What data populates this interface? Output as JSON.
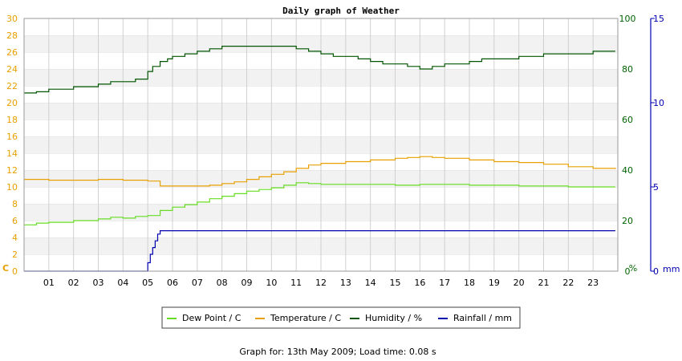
{
  "chart_data": {
    "type": "line",
    "title": "Daily graph of Weather",
    "footer": "Graph for: 13th May 2009; Load time: 0.08 s",
    "x_tick_labels": [
      "01",
      "02",
      "03",
      "04",
      "05",
      "06",
      "07",
      "08",
      "09",
      "10",
      "11",
      "12",
      "13",
      "14",
      "15",
      "16",
      "17",
      "18",
      "19",
      "20",
      "21",
      "22",
      "23"
    ],
    "x_range": [
      0,
      24
    ],
    "grid": true,
    "legend_position": "bottom-center",
    "axes": {
      "left": {
        "unit": "C",
        "range": [
          0,
          30
        ],
        "ticks": [
          0,
          2,
          4,
          6,
          8,
          10,
          12,
          14,
          16,
          18,
          20,
          22,
          24,
          26,
          28,
          30
        ],
        "color": "#e8a000"
      },
      "hum": {
        "unit": "%",
        "range": [
          0,
          100
        ],
        "ticks": [
          0,
          20,
          40,
          60,
          80,
          100
        ],
        "color": "#006400"
      },
      "rain": {
        "unit": "mm",
        "range": [
          0,
          15
        ],
        "ticks": [
          0,
          5,
          10,
          15
        ],
        "color": "#0000b0"
      }
    },
    "series": [
      {
        "name": "Dew Point / C",
        "axis": "left",
        "color": "#66dd22",
        "x": [
          0,
          0.5,
          1,
          2,
          3,
          3.5,
          4,
          4.5,
          5,
          5.5,
          6,
          6.5,
          7,
          7.5,
          8,
          8.5,
          9,
          9.5,
          10,
          10.5,
          11,
          11.5,
          12,
          13,
          14,
          15,
          15.5,
          16,
          17,
          18,
          19,
          20,
          21,
          22,
          23,
          23.9
        ],
        "y": [
          5.5,
          5.7,
          5.8,
          6.0,
          6.2,
          6.4,
          6.3,
          6.5,
          6.6,
          7.2,
          7.6,
          7.9,
          8.2,
          8.6,
          8.9,
          9.2,
          9.5,
          9.7,
          9.9,
          10.2,
          10.5,
          10.4,
          10.3,
          10.3,
          10.3,
          10.2,
          10.2,
          10.3,
          10.3,
          10.2,
          10.2,
          10.1,
          10.1,
          10.0,
          10.0,
          10.0
        ]
      },
      {
        "name": "Temperature / C",
        "axis": "left",
        "color": "#e8a000",
        "x": [
          0,
          1,
          2,
          3,
          4,
          5,
          5.5,
          6,
          7,
          7.5,
          8,
          8.5,
          9,
          9.5,
          10,
          10.5,
          11,
          11.5,
          12,
          13,
          14,
          15,
          15.5,
          16,
          16.5,
          17,
          18,
          19,
          20,
          21,
          22,
          23,
          23.9
        ],
        "y": [
          10.9,
          10.8,
          10.8,
          10.9,
          10.8,
          10.7,
          10.1,
          10.1,
          10.1,
          10.2,
          10.4,
          10.6,
          10.9,
          11.2,
          11.5,
          11.8,
          12.2,
          12.6,
          12.8,
          13.0,
          13.2,
          13.4,
          13.5,
          13.6,
          13.5,
          13.4,
          13.2,
          13.0,
          12.9,
          12.7,
          12.4,
          12.2,
          12.1
        ]
      },
      {
        "name": "Humidity / %",
        "axis": "hum",
        "color": "#005500",
        "x": [
          0,
          0.5,
          1,
          2,
          3,
          3.5,
          4,
          4.5,
          4.9,
          5,
          5.2,
          5.5,
          5.8,
          6,
          6.5,
          7,
          7.5,
          8,
          8.5,
          9,
          9.5,
          10,
          10.5,
          11,
          11.5,
          12,
          12.5,
          13,
          13.5,
          14,
          14.5,
          15,
          15.5,
          16,
          16.5,
          17,
          18,
          18.5,
          19,
          20,
          21,
          22,
          23,
          23.9
        ],
        "y": [
          70.5,
          71,
          72,
          73,
          74,
          75,
          75,
          76,
          76,
          79,
          81,
          83,
          84,
          85,
          86,
          87,
          88,
          89,
          89,
          89,
          89,
          89,
          89,
          88,
          87,
          86,
          85,
          85,
          84,
          83,
          82,
          82,
          81,
          80,
          81,
          82,
          83,
          84,
          84,
          85,
          86,
          86,
          87,
          87
        ]
      },
      {
        "name": "Rainfall / mm",
        "axis": "rain",
        "color": "#0000b0",
        "x": [
          0,
          1,
          2,
          3,
          4,
          4.9,
          5,
          5.1,
          5.2,
          5.3,
          5.4,
          5.5,
          6,
          8,
          10,
          12,
          14,
          16,
          18,
          20,
          22,
          23.9
        ],
        "y": [
          0,
          0,
          0,
          0,
          0,
          0,
          0.5,
          1.0,
          1.4,
          1.8,
          2.2,
          2.4,
          2.4,
          2.4,
          2.4,
          2.4,
          2.4,
          2.4,
          2.4,
          2.4,
          2.4,
          2.4
        ]
      }
    ]
  }
}
